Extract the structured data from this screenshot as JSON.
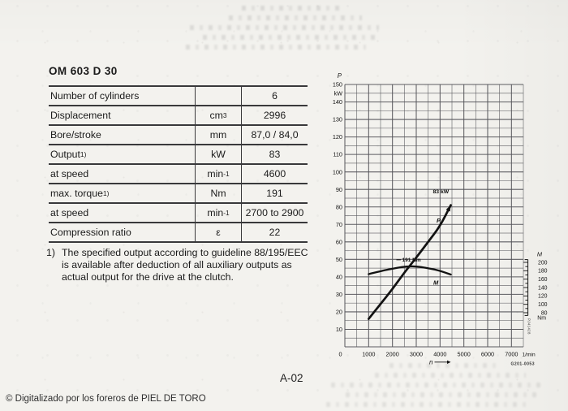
{
  "page": {
    "code": "A-02",
    "copyright": "© Digitalizado por los foreros de PIEL DE TORO",
    "background": "#f3f2ee"
  },
  "spec": {
    "title": "OM 603 D 30",
    "rows": [
      {
        "label": "Number of cylinders",
        "sup": "",
        "unit": "",
        "value": "6"
      },
      {
        "label": "Displacement",
        "sup": "",
        "unit": "cm^3",
        "value": "2996"
      },
      {
        "label": "Bore/stroke",
        "sup": "",
        "unit": "mm",
        "value": "87,0 / 84,0"
      },
      {
        "label": "Output",
        "sup": "1)",
        "unit": "kW",
        "value": "83"
      },
      {
        "label": "at speed",
        "sup": "",
        "unit": "min^-1",
        "value": "4600"
      },
      {
        "label": "max. torque",
        "sup": "1)",
        "unit": "Nm",
        "value": "191"
      },
      {
        "label": "at speed",
        "sup": "",
        "unit": "min^-1",
        "value": "2700 to 2900"
      },
      {
        "label": "Compression ratio",
        "sup": "",
        "unit": "ε",
        "value": "22"
      }
    ],
    "footnote_marker": "1)",
    "footnote_text": "The specified output according to guideline 88/195/EEC is available after deduction of all auxiliary outputs as actual output for the drive at the clutch."
  },
  "chart": {
    "figure_code": "G201-0053",
    "side_code": "PJ41428",
    "ink_color": "#121212",
    "grid_color": "#55555a"
  },
  "chart_data": {
    "type": "line",
    "title": "",
    "x_axis": {
      "label": "n",
      "unit": "1/min",
      "min": 0,
      "max": 7500,
      "minor_step": 500,
      "ticks": [
        0,
        1000,
        2000,
        3000,
        4000,
        5000,
        6000,
        7000
      ]
    },
    "y_left": {
      "label": "P",
      "unit": "kW",
      "min": 0,
      "max": 150,
      "minor_step": 5,
      "ticks": [
        150,
        140,
        130,
        120,
        110,
        100,
        90,
        80,
        70,
        60,
        50,
        40,
        30,
        20,
        10,
        0
      ]
    },
    "y_right": {
      "label": "M",
      "unit": "Nm",
      "min": 80,
      "max": 200,
      "minor_step": 10,
      "ticks": [
        200,
        180,
        160,
        140,
        120,
        100,
        80
      ]
    },
    "grid": true,
    "legend": "inline curve labels",
    "series": [
      {
        "name": "P",
        "axis": "left",
        "annotation": "83 kW",
        "points": [
          [
            1000,
            16
          ],
          [
            1500,
            24.5
          ],
          [
            2000,
            33
          ],
          [
            2500,
            42.5
          ],
          [
            3000,
            51
          ],
          [
            3500,
            60
          ],
          [
            4000,
            69
          ],
          [
            4450,
            81
          ]
        ]
      },
      {
        "name": "M",
        "axis": "right",
        "annotation": "191 Nm",
        "points": [
          [
            1000,
            172
          ],
          [
            1500,
            179
          ],
          [
            2000,
            185
          ],
          [
            2400,
            189
          ],
          [
            2800,
            191
          ],
          [
            3200,
            189
          ],
          [
            3600,
            185
          ],
          [
            4000,
            180
          ],
          [
            4450,
            171
          ]
        ]
      }
    ]
  }
}
